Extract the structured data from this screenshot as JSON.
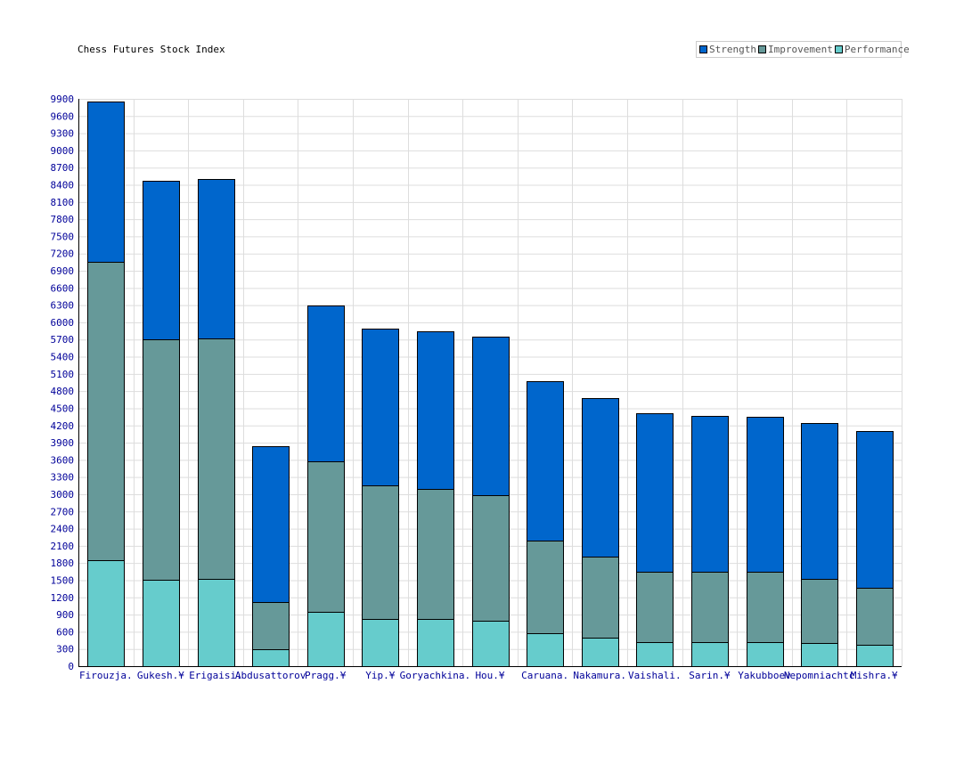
{
  "chart_data": {
    "type": "bar",
    "stacked": true,
    "title": "Chess Futures Stock Index",
    "categories": [
      "Firouzja.",
      "Gukesh.¥",
      "Erigaisi.",
      "Abdusattorov",
      "Pragg.¥",
      "Yip.¥",
      "Goryachkina.",
      "Hou.¥",
      "Caruana.",
      "Nakamura.",
      "Vaishali.",
      "Sarin.¥",
      "Yakubboev",
      "Nepomniachtc",
      "Mishra.¥"
    ],
    "series": [
      {
        "name": "Performance",
        "color": "#66cccc",
        "values": [
          1850,
          1500,
          1520,
          300,
          950,
          830,
          820,
          790,
          570,
          500,
          420,
          420,
          420,
          400,
          370
        ]
      },
      {
        "name": "Improvement",
        "color": "#669999",
        "values": [
          5200,
          4200,
          4200,
          820,
          2620,
          2330,
          2270,
          2200,
          1620,
          1410,
          1220,
          1220,
          1220,
          1120,
          1000
        ]
      },
      {
        "name": "Strength",
        "color": "#0066cc",
        "values": [
          2800,
          2770,
          2780,
          2720,
          2730,
          2730,
          2750,
          2760,
          2780,
          2770,
          2770,
          2720,
          2710,
          2730,
          2740
        ]
      }
    ],
    "legend_order": [
      "Strength",
      "Improvement",
      "Performance"
    ],
    "ylim": [
      0,
      9900
    ],
    "yticks": [
      0,
      300,
      600,
      900,
      1200,
      1500,
      1800,
      2100,
      2400,
      2700,
      3000,
      3300,
      3600,
      3900,
      4200,
      4500,
      4800,
      5100,
      5400,
      5700,
      6000,
      6300,
      6600,
      6900,
      7200,
      7500,
      7800,
      8100,
      8400,
      8700,
      9000,
      9300,
      9600,
      9900
    ],
    "grid": true,
    "legend_position": "top-right",
    "axis_label_color": "#000099"
  }
}
